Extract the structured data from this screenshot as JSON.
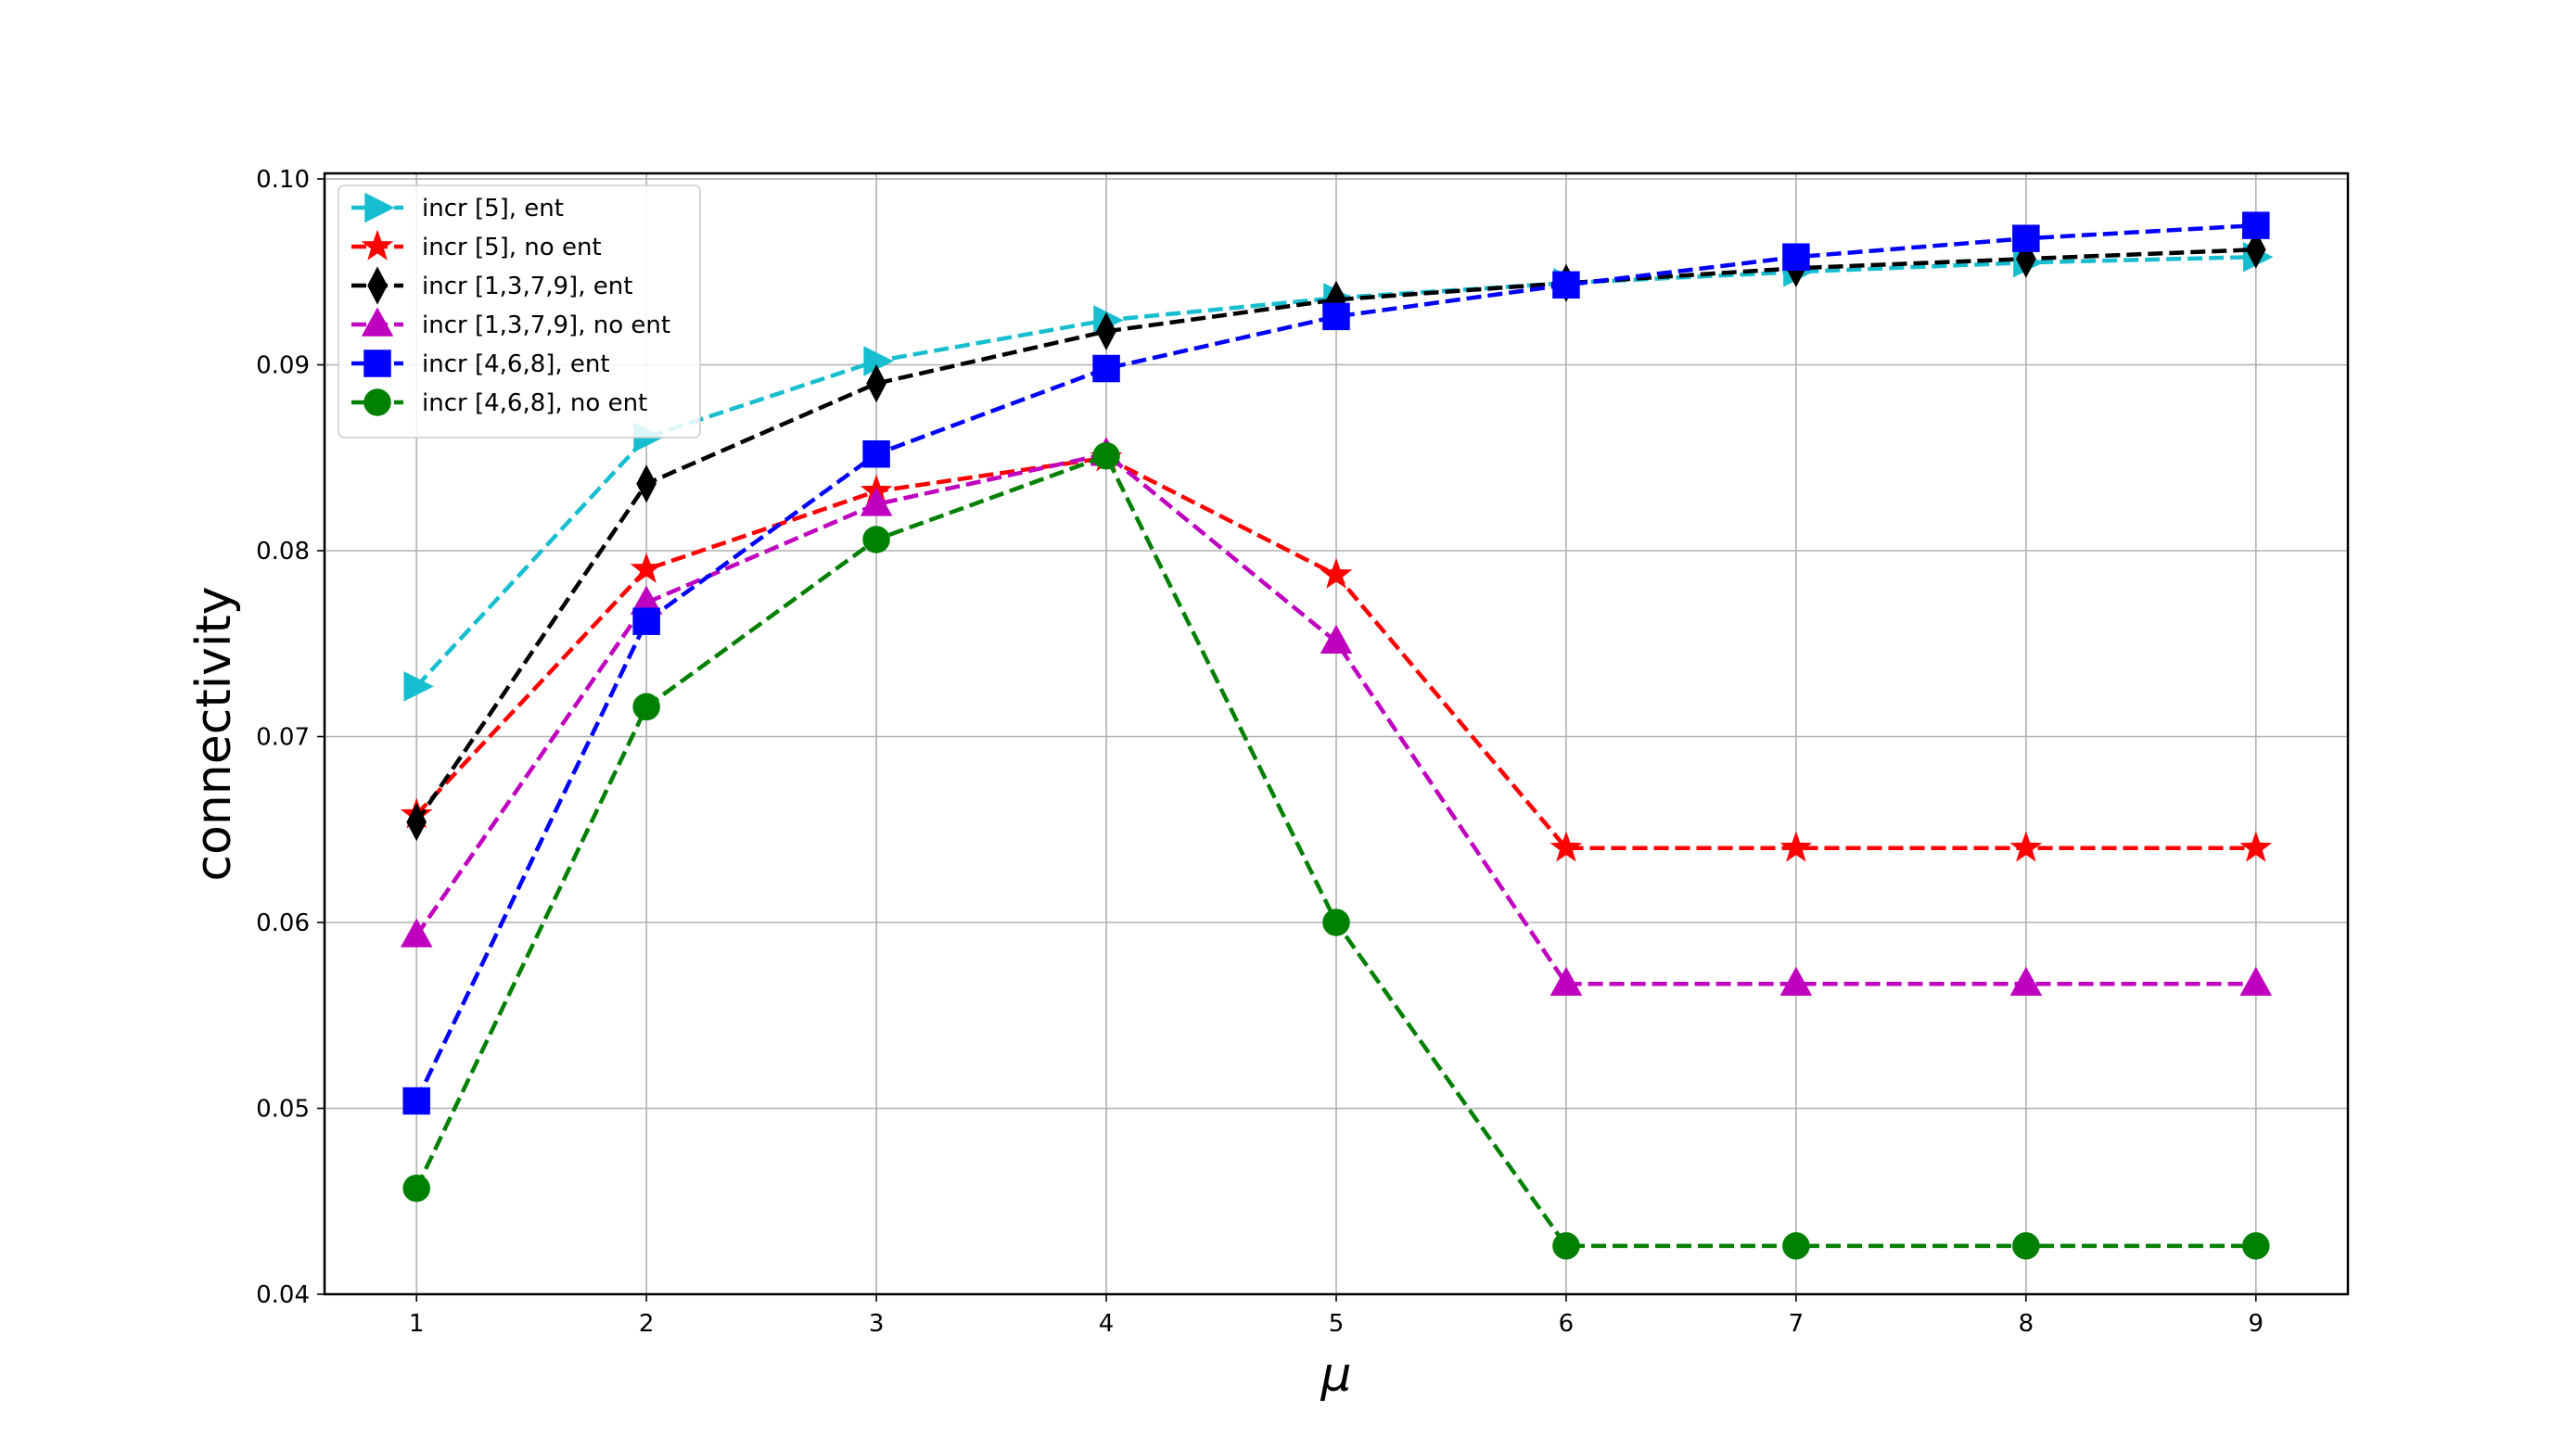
{
  "chart_data": {
    "type": "line",
    "title": "",
    "xlabel": "μ",
    "ylabel": "connectivity",
    "x": [
      1,
      2,
      3,
      4,
      5,
      6,
      7,
      8,
      9
    ],
    "xticks": [
      1,
      2,
      3,
      4,
      5,
      6,
      7,
      8,
      9
    ],
    "xtick_labels": [
      "1",
      "2",
      "3",
      "4",
      "5",
      "6",
      "7",
      "8",
      "9"
    ],
    "xlim": [
      0.6,
      9.4
    ],
    "ylim": [
      0.04,
      0.1003
    ],
    "yticks": [
      0.04,
      0.05,
      0.06,
      0.07,
      0.08,
      0.09,
      0.1
    ],
    "ytick_labels": [
      "0.04",
      "0.05",
      "0.06",
      "0.07",
      "0.08",
      "0.09",
      "0.10"
    ],
    "grid": true,
    "legend_position": "upper left",
    "line_style": "dashed",
    "series": [
      {
        "name": "incr [5], ent",
        "color": "#17becf",
        "marker": "triangle-right",
        "values": [
          0.0727,
          0.0861,
          0.0902,
          0.0924,
          0.0936,
          0.0944,
          0.095,
          0.0955,
          0.0958
        ]
      },
      {
        "name": "incr [5], no ent",
        "color": "#ff0000",
        "marker": "star",
        "values": [
          0.0658,
          0.079,
          0.0832,
          0.085,
          0.0787,
          0.064,
          0.064,
          0.064,
          0.064
        ]
      },
      {
        "name": "incr [1,3,7,9], ent",
        "color": "#000000",
        "marker": "thin-diamond",
        "values": [
          0.0654,
          0.0836,
          0.089,
          0.0918,
          0.0935,
          0.0944,
          0.0952,
          0.0957,
          0.0962
        ]
      },
      {
        "name": "incr [1,3,7,9], no ent",
        "color": "#bf00bf",
        "marker": "triangle-up",
        "values": [
          0.0593,
          0.0772,
          0.0825,
          0.0852,
          0.0751,
          0.0567,
          0.0567,
          0.0567,
          0.0567
        ]
      },
      {
        "name": "incr [4,6,8], ent",
        "color": "#0000ff",
        "marker": "square",
        "values": [
          0.0504,
          0.0762,
          0.0852,
          0.0898,
          0.0926,
          0.0943,
          0.0958,
          0.0968,
          0.0975
        ]
      },
      {
        "name": "incr [4,6,8], no ent",
        "color": "#008000",
        "marker": "circle",
        "values": [
          0.0457,
          0.0716,
          0.0806,
          0.0851,
          0.06,
          0.0426,
          0.0426,
          0.0426,
          0.0426
        ]
      }
    ]
  }
}
